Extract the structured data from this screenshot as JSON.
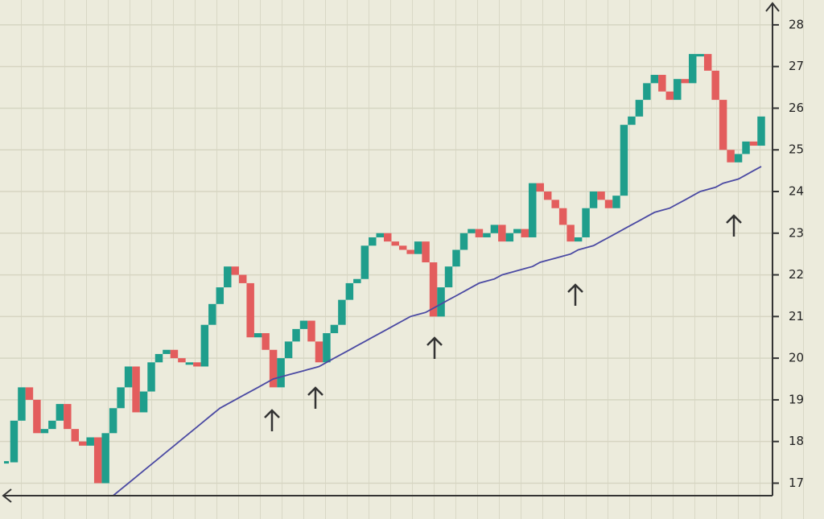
{
  "chart_data": {
    "type": "candlestick",
    "ylim": [
      16.7,
      28.5
    ],
    "yticks": [
      17,
      18,
      19,
      20,
      21,
      22,
      23,
      24,
      25,
      26,
      27,
      28
    ],
    "grid": true,
    "up_color": "#1f9e8c",
    "down_color": "#e35d5d",
    "series": [
      {
        "values": [
          17.5,
          18.5,
          19.3,
          19.0,
          18.2,
          18.3,
          18.5,
          18.9,
          18.3,
          18.0,
          17.9,
          18.1,
          17.0,
          18.2,
          18.8,
          19.3,
          19.8,
          18.7,
          19.2,
          19.9,
          20.1,
          20.2,
          20.0,
          19.9,
          19.9,
          19.8,
          20.8,
          21.3,
          21.7,
          22.2,
          22.0,
          21.8,
          20.5,
          20.6,
          20.2,
          19.3,
          20.0,
          20.4,
          20.7,
          20.9,
          20.4,
          19.9,
          20.6,
          20.8,
          21.4,
          21.8,
          21.9,
          22.7,
          22.9,
          23.0,
          22.8,
          22.7,
          22.6,
          22.5,
          22.8,
          22.3,
          21.0,
          21.7,
          22.2,
          22.6,
          23.0,
          23.1,
          22.9,
          23.0,
          23.2,
          22.8,
          23.0,
          23.1,
          22.9,
          24.2,
          24.0,
          23.8,
          23.6,
          23.2,
          22.8,
          22.9,
          23.6,
          24.0,
          23.8,
          23.6,
          23.9,
          25.6,
          25.8,
          26.2,
          26.6,
          26.8,
          26.4,
          26.2,
          26.7,
          26.6,
          27.3,
          27.3,
          26.9,
          26.2,
          25.0,
          24.7,
          24.9,
          25.2,
          25.1,
          25.8
        ]
      },
      {
        "type": "line",
        "color": "#4b4aa3",
        "values": [
          null,
          null,
          null,
          null,
          null,
          null,
          null,
          null,
          null,
          null,
          null,
          null,
          null,
          null,
          16.7,
          16.85,
          17.0,
          17.15,
          17.3,
          17.45,
          17.6,
          17.75,
          17.9,
          18.05,
          18.2,
          18.35,
          18.5,
          18.65,
          18.8,
          18.9,
          19.0,
          19.1,
          19.2,
          19.3,
          19.4,
          19.5,
          19.55,
          19.6,
          19.65,
          19.7,
          19.75,
          19.8,
          19.9,
          20.0,
          20.1,
          20.2,
          20.3,
          20.4,
          20.5,
          20.6,
          20.7,
          20.8,
          20.9,
          21.0,
          21.05,
          21.1,
          21.2,
          21.3,
          21.4,
          21.5,
          21.6,
          21.7,
          21.8,
          21.85,
          21.9,
          22.0,
          22.05,
          22.1,
          22.15,
          22.2,
          22.3,
          22.35,
          22.4,
          22.45,
          22.5,
          22.6,
          22.65,
          22.7,
          22.8,
          22.9,
          23.0,
          23.1,
          23.2,
          23.3,
          23.4,
          23.5,
          23.55,
          23.6,
          23.7,
          23.8,
          23.9,
          24.0,
          24.05,
          24.1,
          24.2,
          24.25,
          24.3,
          24.4,
          24.5,
          24.6
        ]
      }
    ]
  }
}
